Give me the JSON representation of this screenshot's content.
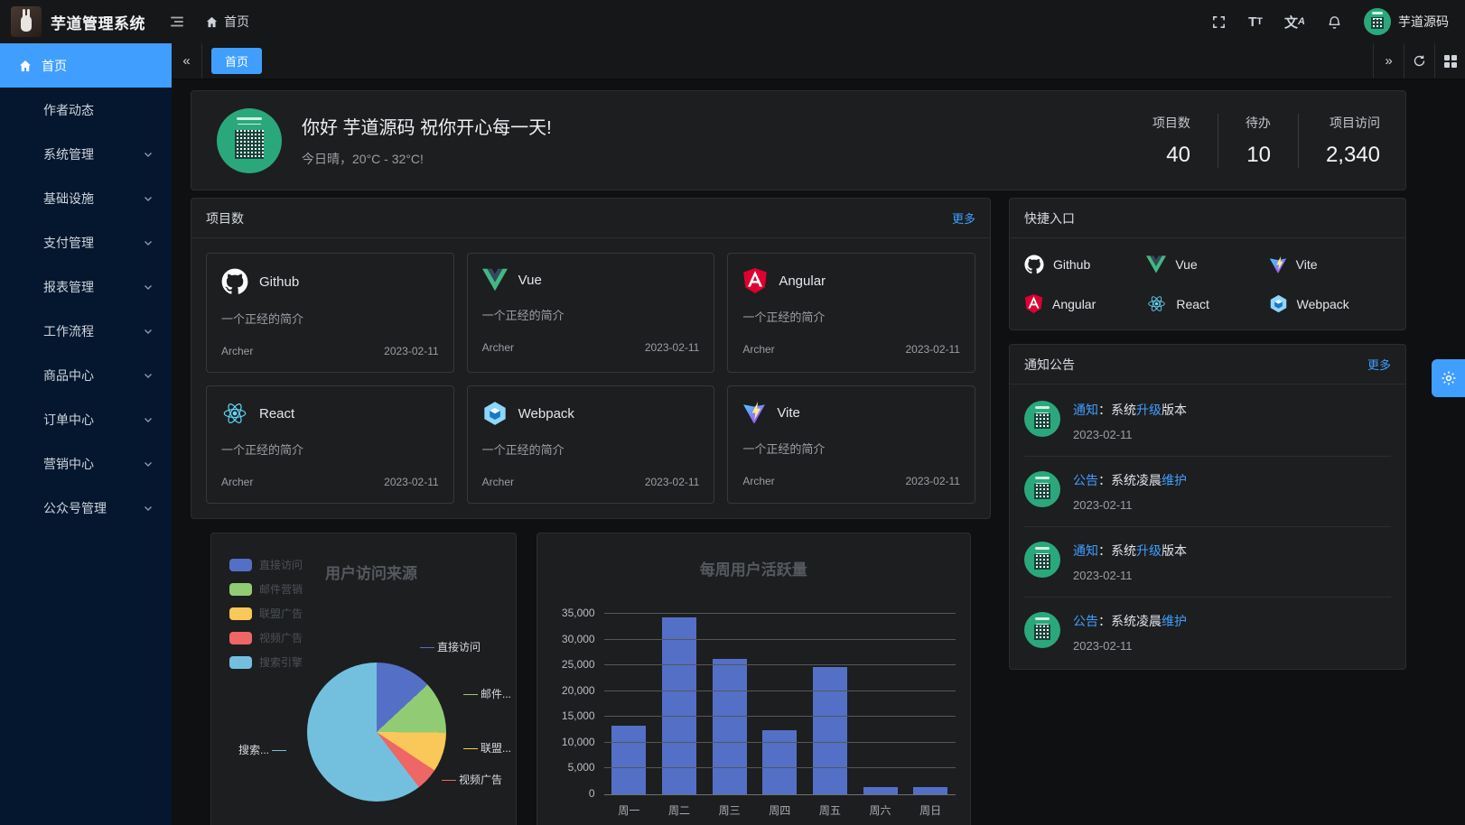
{
  "header": {
    "app_title": "芋道管理系统",
    "breadcrumb_home": "首页",
    "username": "芋道源码",
    "action_icons": [
      "fullscreen-icon",
      "font-size-icon",
      "language-icon",
      "bell-icon"
    ]
  },
  "tabbar": {
    "active_tab": "首页",
    "action_icons": [
      "scroll-left-icon",
      "scroll-right-icon",
      "refresh-icon",
      "layout-grid-icon"
    ]
  },
  "sidebar": {
    "items": [
      {
        "label": "首页",
        "active": true,
        "icon": "home-icon"
      },
      {
        "label": "作者动态"
      },
      {
        "label": "系统管理",
        "expandable": true
      },
      {
        "label": "基础设施",
        "expandable": true
      },
      {
        "label": "支付管理",
        "expandable": true
      },
      {
        "label": "报表管理",
        "expandable": true
      },
      {
        "label": "工作流程",
        "expandable": true
      },
      {
        "label": "商品中心",
        "expandable": true
      },
      {
        "label": "订单中心",
        "expandable": true
      },
      {
        "label": "营销中心",
        "expandable": true
      },
      {
        "label": "公众号管理",
        "expandable": true
      }
    ]
  },
  "banner": {
    "greeting": "你好 芋道源码 祝你开心每一天!",
    "weather": "今日晴，20°C - 32°C!",
    "stats": [
      {
        "label": "项目数",
        "value": "40"
      },
      {
        "label": "待办",
        "value": "10"
      },
      {
        "label": "项目访问",
        "value": "2,340"
      }
    ]
  },
  "projects": {
    "title": "项目数",
    "more": "更多",
    "items": [
      {
        "name": "Github",
        "icon": "github-icon",
        "desc": "一个正经的简介",
        "author": "Archer",
        "date": "2023-02-11"
      },
      {
        "name": "Vue",
        "icon": "vue-icon",
        "desc": "一个正经的简介",
        "author": "Archer",
        "date": "2023-02-11"
      },
      {
        "name": "Angular",
        "icon": "angular-icon",
        "desc": "一个正经的简介",
        "author": "Archer",
        "date": "2023-02-11"
      },
      {
        "name": "React",
        "icon": "react-icon",
        "desc": "一个正经的简介",
        "author": "Archer",
        "date": "2023-02-11"
      },
      {
        "name": "Webpack",
        "icon": "webpack-icon",
        "desc": "一个正经的简介",
        "author": "Archer",
        "date": "2023-02-11"
      },
      {
        "name": "Vite",
        "icon": "vite-icon",
        "desc": "一个正经的简介",
        "author": "Archer",
        "date": "2023-02-11"
      }
    ]
  },
  "shortcuts": {
    "title": "快捷入口",
    "items": [
      {
        "name": "Github",
        "icon": "github-icon"
      },
      {
        "name": "Vue",
        "icon": "vue-icon"
      },
      {
        "name": "Vite",
        "icon": "vite-icon"
      },
      {
        "name": "Angular",
        "icon": "angular-icon"
      },
      {
        "name": "React",
        "icon": "react-icon"
      },
      {
        "name": "Webpack",
        "icon": "webpack-icon"
      }
    ]
  },
  "notices": {
    "title": "通知公告",
    "more": "更多",
    "items": [
      {
        "tag": "通知",
        "mid": "：系统",
        "hl": "升级",
        "tail": "版本",
        "date": "2023-02-11"
      },
      {
        "tag": "公告",
        "mid": "：系统凌晨",
        "hl": "维护",
        "tail": "",
        "date": "2023-02-11"
      },
      {
        "tag": "通知",
        "mid": "：系统",
        "hl": "升级",
        "tail": "版本",
        "date": "2023-02-11"
      },
      {
        "tag": "公告",
        "mid": "：系统凌晨",
        "hl": "维护",
        "tail": "",
        "date": "2023-02-11"
      }
    ]
  },
  "colors": {
    "accent_blue": "#409eff",
    "sidebar_bg": "#04172e",
    "avatar_green": "#2aa87c",
    "card_bg": "#1d1e20"
  },
  "chart_data": [
    {
      "type": "pie",
      "title": "用户访问来源",
      "labels": [
        "直接访问",
        "邮件营销",
        "联盟广告",
        "视频广告",
        "搜索引擎"
      ],
      "values": [
        335,
        310,
        234,
        135,
        1548
      ],
      "colors": [
        "#5470C6",
        "#91CC75",
        "#FAC858",
        "#EE6666",
        "#73C0DE"
      ],
      "callout_labels": [
        "直接访问",
        "邮件...",
        "联盟...",
        "视频广告",
        "搜索..."
      ],
      "legend_position": "top-left"
    },
    {
      "type": "bar",
      "title": "每周用户活跃量",
      "categories": [
        "周一",
        "周二",
        "周三",
        "周四",
        "周五",
        "周六",
        "周日"
      ],
      "values": [
        13253,
        34235,
        26321,
        12340,
        24643,
        1322,
        1324
      ],
      "bar_color": "#5470C6",
      "ylim": [
        0,
        35000
      ],
      "ytick_step": 5000,
      "ytick_labels": [
        "0",
        "5,000",
        "10,000",
        "15,000",
        "20,000",
        "25,000",
        "30,000",
        "35,000"
      ],
      "grid": true
    }
  ]
}
